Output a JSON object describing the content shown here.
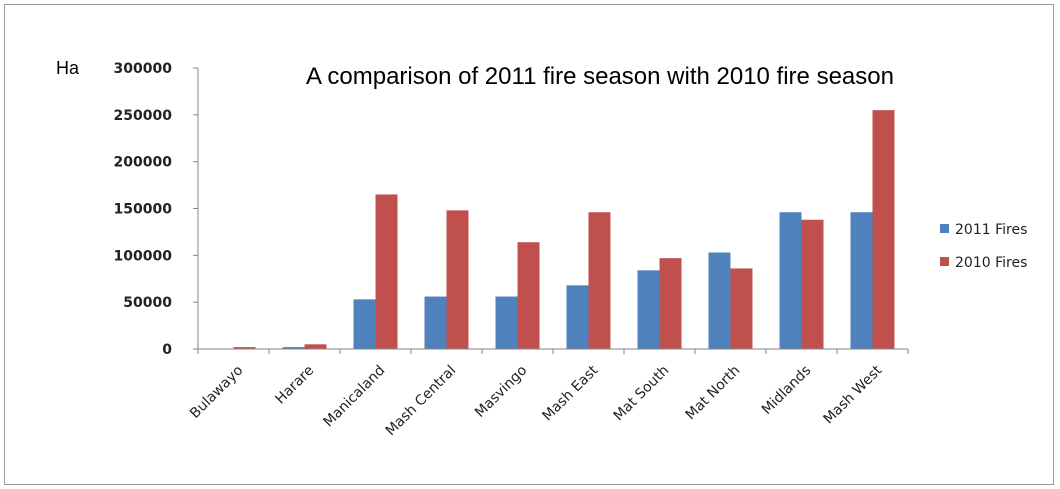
{
  "chart_data": {
    "type": "bar",
    "title": "A comparison of 2011 fire season  with 2010 fire season",
    "ylabel": "Ha",
    "xlabel": "",
    "ylim": [
      0,
      300000
    ],
    "yticks": [
      "0",
      "50000",
      "100000",
      "150000",
      "200000",
      "250000",
      "300000"
    ],
    "ytick_values": [
      0,
      50000,
      100000,
      150000,
      200000,
      250000,
      300000
    ],
    "categories": [
      "Bulawayo",
      "Harare",
      "Manicaland",
      "Mash Central",
      "Masvingo",
      "Mash East",
      "Mat South",
      "Mat North",
      "Midlands",
      "Mash West"
    ],
    "series": [
      {
        "name": "2011 Fires",
        "color": "#4f81bd",
        "values": [
          500,
          2000,
          53000,
          56000,
          56000,
          68000,
          84000,
          103000,
          146000,
          146000
        ]
      },
      {
        "name": "2010 Fires",
        "color": "#c0504d",
        "values": [
          2000,
          5000,
          165000,
          148000,
          114000,
          146000,
          97000,
          86000,
          138000,
          255000
        ]
      }
    ],
    "grid": false,
    "legend_position": "right"
  }
}
